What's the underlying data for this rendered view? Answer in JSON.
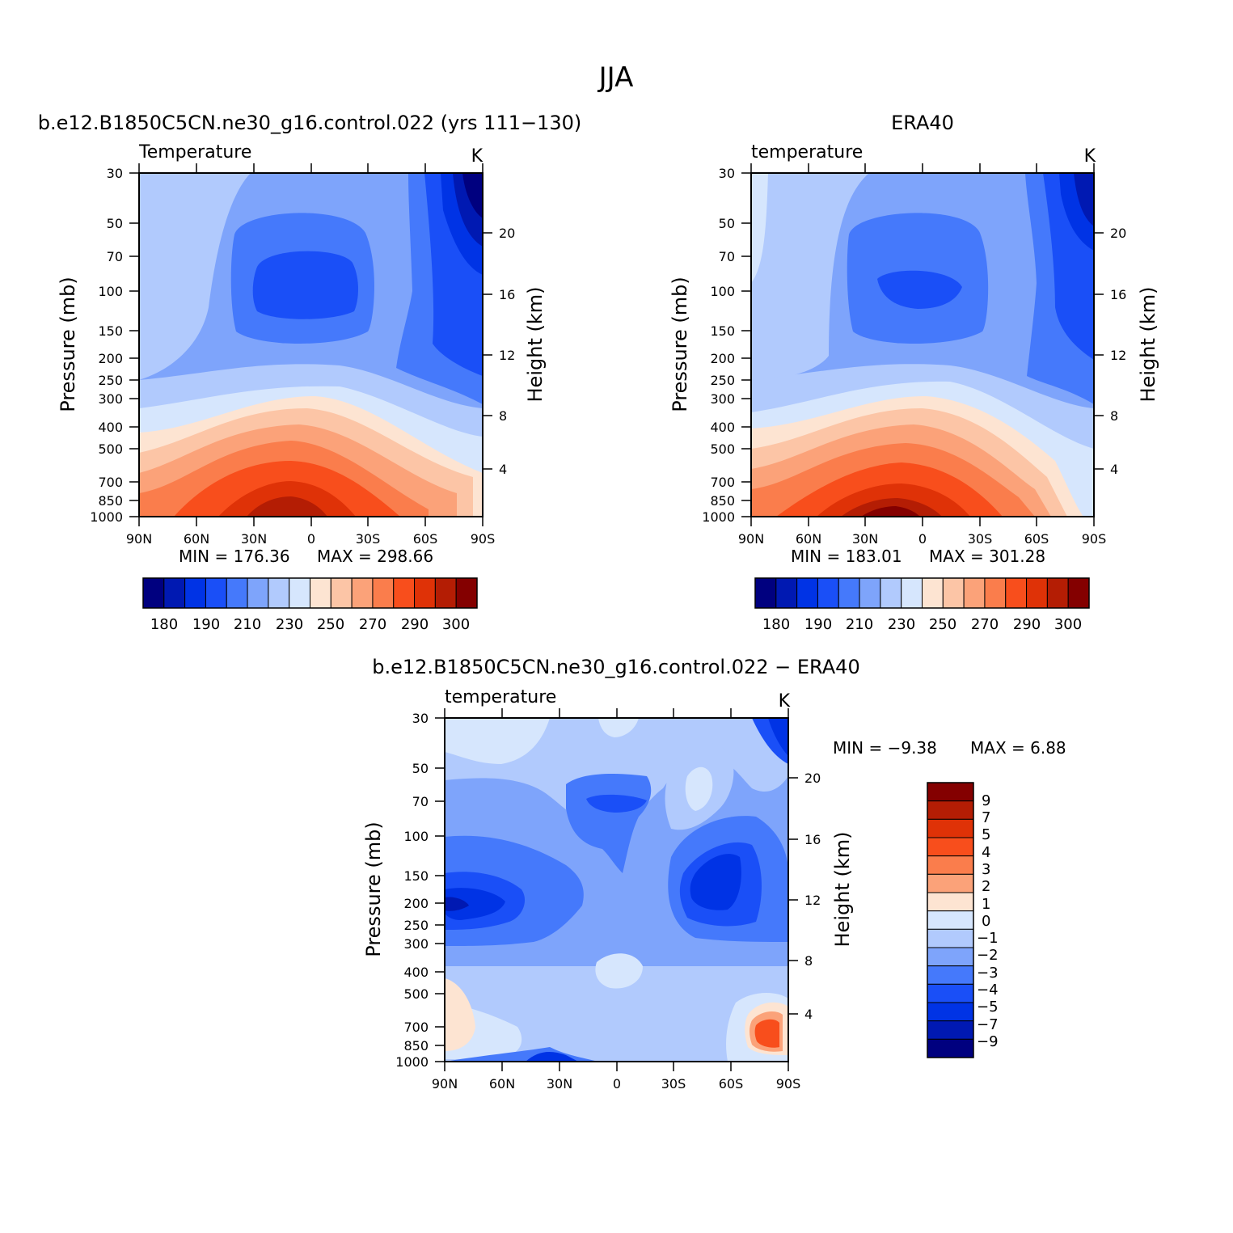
{
  "main_title": "JJA",
  "colors": {
    "abs_scale": [
      "#00007f",
      "#0019b2",
      "#0033e5",
      "#1a4ff7",
      "#4579fb",
      "#7ea4fb",
      "#b1cafd",
      "#d6e6fd",
      "#fde4d2",
      "#fcc5a6",
      "#fba279",
      "#fa7d4c",
      "#f84e1c",
      "#df3207",
      "#b41d04",
      "#840000"
    ],
    "diff_scale": [
      "#00007f",
      "#0019b2",
      "#0033e5",
      "#1a4ff7",
      "#4579fb",
      "#7ea4fb",
      "#b1cafd",
      "#d6e6fd",
      "#fde4d2",
      "#fba279",
      "#fa7d4c",
      "#f84e1c",
      "#df3207",
      "#b41d04",
      "#840000"
    ]
  },
  "chart_data": [
    {
      "type": "contour",
      "id": "model",
      "subtitle": "b.e12.B1850C5CN.ne30_g16.control.022 (yrs 111-130)",
      "left_label": "Temperature",
      "units": "K",
      "ylabel": "Pressure (mb)",
      "y2label": "Height (km)",
      "xticks": [
        "90N",
        "60N",
        "30N",
        "0",
        "30S",
        "60S",
        "90S"
      ],
      "yticks": [
        "30",
        "50",
        "70",
        "100",
        "150",
        "200",
        "250",
        "300",
        "400",
        "500",
        "700",
        "850",
        "1000"
      ],
      "y2ticks": [
        "20",
        "16",
        "12",
        "8",
        "4"
      ],
      "min_text": "MIN = 176.36",
      "max_text": "MAX = 298.66",
      "min": 176.36,
      "max": 298.66,
      "colorbar_labels": [
        "180",
        "190",
        "210",
        "230",
        "250",
        "270",
        "290",
        "300"
      ]
    },
    {
      "type": "contour",
      "id": "obs",
      "subtitle": "ERA40",
      "left_label": "temperature",
      "units": "K",
      "ylabel": "Pressure (mb)",
      "y2label": "Height (km)",
      "xticks": [
        "90N",
        "60N",
        "30N",
        "0",
        "30S",
        "60S",
        "90S"
      ],
      "yticks": [
        "30",
        "50",
        "70",
        "100",
        "150",
        "200",
        "250",
        "300",
        "400",
        "500",
        "700",
        "850",
        "1000"
      ],
      "y2ticks": [
        "20",
        "16",
        "12",
        "8",
        "4"
      ],
      "min_text": "MIN = 183.01",
      "max_text": "MAX = 301.28",
      "min": 183.01,
      "max": 301.28,
      "colorbar_labels": [
        "180",
        "190",
        "210",
        "230",
        "250",
        "270",
        "290",
        "300"
      ]
    },
    {
      "type": "contour",
      "id": "diff",
      "subtitle": "b.e12.B1850C5CN.ne30_g16.control.022 - ERA40",
      "left_label": "temperature",
      "units": "K",
      "ylabel": "Pressure (mb)",
      "y2label": "Height (km)",
      "xticks": [
        "90N",
        "60N",
        "30N",
        "0",
        "30S",
        "60S",
        "90S"
      ],
      "yticks": [
        "30",
        "50",
        "70",
        "100",
        "150",
        "200",
        "250",
        "300",
        "400",
        "500",
        "700",
        "850",
        "1000"
      ],
      "y2ticks": [
        "20",
        "16",
        "12",
        "8",
        "4"
      ],
      "min_text": "MIN = -9.38",
      "max_text": "MAX = 6.88",
      "min": -9.38,
      "max": 6.88,
      "colorbar_labels": [
        "9",
        "7",
        "5",
        "4",
        "3",
        "2",
        "1",
        "0",
        "-1",
        "-2",
        "-3",
        "-4",
        "-5",
        "-7",
        "-9"
      ]
    }
  ]
}
